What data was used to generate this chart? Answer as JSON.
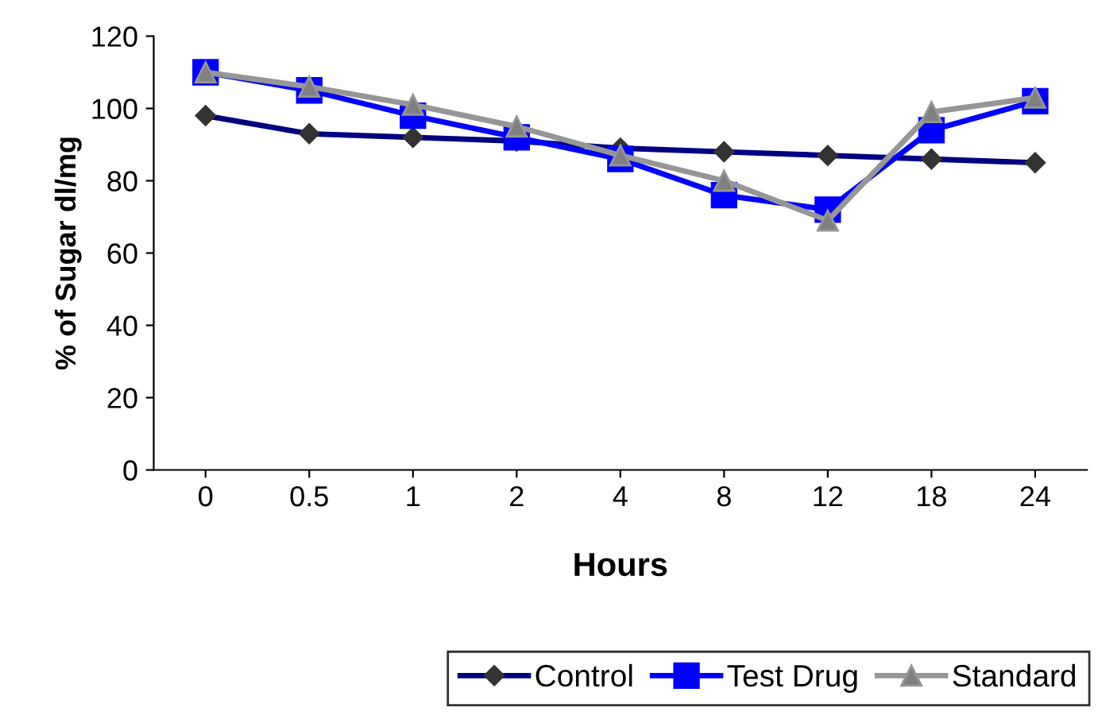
{
  "chart_data": {
    "type": "line",
    "xlabel": "Hours",
    "ylabel": "% of Sugar dl/mg",
    "categories": [
      "0",
      "0.5",
      "1",
      "2",
      "4",
      "8",
      "12",
      "18",
      "24"
    ],
    "series": [
      {
        "name": "Control",
        "color": "#000080",
        "marker": "diamond",
        "values": [
          98,
          93,
          92,
          91,
          89,
          88,
          87,
          86,
          85
        ]
      },
      {
        "name": "Test Drug",
        "color": "#0000ff",
        "marker": "square",
        "values": [
          110,
          105,
          98,
          92,
          86,
          76,
          72,
          94,
          102
        ]
      },
      {
        "name": "Standard",
        "color": "#969696",
        "marker": "triangle",
        "values": [
          110,
          106,
          101,
          95,
          87,
          80,
          69,
          99,
          103
        ]
      }
    ],
    "ylim": [
      0,
      120
    ],
    "yticks": [
      0,
      20,
      40,
      60,
      80,
      100,
      120
    ],
    "grid": false,
    "legend": "bottom"
  }
}
